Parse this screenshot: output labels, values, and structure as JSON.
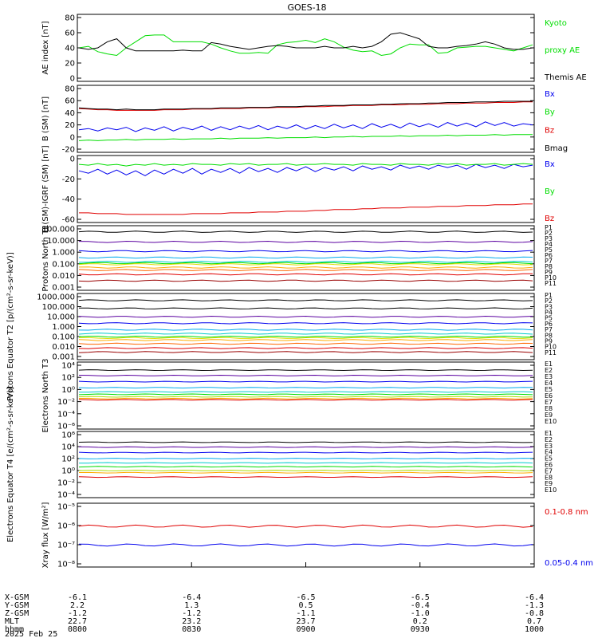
{
  "title": "GOES-18",
  "date": "2025 Feb 25",
  "colors": {
    "black": "#000000",
    "red": "#e00000",
    "green": "#00dd00",
    "blue": "#0000ee"
  },
  "ephemeris": {
    "rows": [
      "X-GSM",
      "Y-GSM",
      "Z-GSM",
      "MLT",
      "hhmm"
    ],
    "columns": [
      {
        "x": "-6.1",
        "y": "2.2",
        "z": "-1.2",
        "mlt": "22.7",
        "hhmm": "0800"
      },
      {
        "x": "-6.4",
        "y": "1.3",
        "z": "-1.2",
        "mlt": "23.2",
        "hhmm": "0830"
      },
      {
        "x": "-6.5",
        "y": "0.5",
        "z": "-1.1",
        "mlt": "23.7",
        "hhmm": "0900"
      },
      {
        "x": "-6.5",
        "y": "-0.4",
        "z": "-1.0",
        "mlt": "0.2",
        "hhmm": "0930"
      },
      {
        "x": "-6.4",
        "y": "-1.3",
        "z": "-0.8",
        "mlt": "0.7",
        "hhmm": "1000"
      }
    ]
  },
  "chart_data": [
    {
      "type": "line",
      "ylabel": "AE index [nT]",
      "yticks": [
        "80",
        "60",
        "40",
        "20",
        "0"
      ],
      "ylim": [
        0,
        80
      ],
      "scale": "linear",
      "legend": [
        {
          "text": "Kyoto",
          "color": "#00dd00"
        },
        {
          "text": "proxy AE",
          "color": "#00dd00"
        },
        {
          "text": "Themis AE",
          "color": "#000000"
        }
      ],
      "series": [
        {
          "color": "#00dd00",
          "values": [
            40,
            42,
            35,
            32,
            30,
            40,
            48,
            56,
            57,
            57,
            48,
            48,
            48,
            48,
            45,
            40,
            36,
            33,
            33,
            34,
            33,
            44,
            47,
            48,
            50,
            47,
            52,
            48,
            41,
            37,
            35,
            36,
            30,
            32,
            40,
            45,
            44,
            44,
            33,
            34,
            40,
            41,
            42,
            42,
            40,
            38,
            36,
            40,
            44
          ]
        },
        {
          "color": "#000000",
          "values": [
            40,
            38,
            40,
            48,
            52,
            40,
            36,
            36,
            36,
            36,
            36,
            37,
            36,
            36,
            47,
            45,
            42,
            40,
            38,
            40,
            42,
            43,
            42,
            40,
            40,
            40,
            42,
            40,
            40,
            42,
            40,
            42,
            48,
            58,
            60,
            56,
            52,
            42,
            40,
            40,
            42,
            43,
            45,
            48,
            45,
            40,
            38,
            38,
            40
          ]
        }
      ]
    },
    {
      "type": "line",
      "ylabel": "B (SM) [nT]",
      "yticks": [
        "80",
        "60",
        "40",
        "20",
        "0",
        "-20"
      ],
      "ylim": [
        -20,
        80
      ],
      "scale": "linear",
      "legend": [
        {
          "text": "Bx",
          "color": "#0000ee"
        },
        {
          "text": "By",
          "color": "#00dd00"
        },
        {
          "text": "Bz",
          "color": "#e00000"
        },
        {
          "text": "Bmag",
          "color": "#000000"
        }
      ],
      "series": [
        {
          "color": "#0000ee",
          "values": [
            12,
            14,
            10,
            15,
            12,
            16,
            9,
            15,
            11,
            17,
            10,
            16,
            12,
            18,
            11,
            17,
            12,
            18,
            13,
            19,
            12,
            18,
            14,
            20,
            13,
            19,
            14,
            21,
            15,
            20,
            14,
            22,
            16,
            21,
            15,
            23,
            17,
            22,
            16,
            24,
            18,
            23,
            17,
            25,
            19,
            24,
            18,
            22,
            20
          ]
        },
        {
          "color": "#00dd00",
          "values": [
            -6,
            -5,
            -6,
            -5,
            -5,
            -4,
            -5,
            -4,
            -4,
            -4,
            -3,
            -4,
            -3,
            -3,
            -3,
            -2,
            -3,
            -2,
            -2,
            -2,
            -1,
            -2,
            -1,
            -1,
            -1,
            0,
            -1,
            0,
            0,
            1,
            0,
            1,
            1,
            1,
            2,
            1,
            2,
            2,
            2,
            3,
            2,
            3,
            3,
            3,
            4,
            3,
            4,
            4,
            4
          ]
        },
        {
          "color": "#e00000",
          "values": [
            47,
            46,
            45,
            45,
            44,
            44,
            44,
            44,
            44,
            45,
            45,
            45,
            46,
            46,
            46,
            47,
            47,
            47,
            48,
            48,
            48,
            49,
            49,
            49,
            50,
            50,
            50,
            51,
            51,
            52,
            52,
            52,
            53,
            53,
            53,
            54,
            54,
            54,
            55,
            55,
            55,
            56,
            56,
            56,
            57,
            57,
            57,
            58,
            58
          ]
        },
        {
          "color": "#000000",
          "values": [
            48,
            47,
            46,
            46,
            45,
            46,
            45,
            45,
            45,
            46,
            46,
            46,
            47,
            47,
            47,
            48,
            48,
            48,
            49,
            49,
            49,
            50,
            50,
            50,
            51,
            51,
            52,
            52,
            52,
            53,
            53,
            53,
            54,
            54,
            55,
            55,
            55,
            56,
            56,
            57,
            57,
            57,
            58,
            58,
            58,
            59,
            59,
            59,
            59
          ]
        }
      ]
    },
    {
      "type": "line",
      "ylabel": "B (SM)-IGRF (SM) [nT]",
      "yticks": [
        "0",
        "-20",
        "-40",
        "-60"
      ],
      "ylim": [
        -65,
        10
      ],
      "scale": "linear",
      "legend": [
        {
          "text": "Bx",
          "color": "#0000ee"
        },
        {
          "text": "By",
          "color": "#00dd00"
        },
        {
          "text": "Bz",
          "color": "#e00000"
        }
      ],
      "series": [
        {
          "color": "#0000ee",
          "values": [
            -5,
            -8,
            -3,
            -9,
            -4,
            -10,
            -5,
            -11,
            -4,
            -9,
            -3,
            -8,
            -2,
            -9,
            -3,
            -7,
            -2,
            -8,
            -1,
            -6,
            -2,
            -7,
            -1,
            -5,
            0,
            -6,
            -1,
            -4,
            0,
            -5,
            1,
            -3,
            0,
            -4,
            2,
            -2,
            1,
            -3,
            2,
            -1,
            2,
            -3,
            3,
            -1,
            2,
            -2,
            3,
            0,
            2
          ]
        },
        {
          "color": "#00dd00",
          "values": [
            3,
            2,
            4,
            2,
            3,
            1,
            3,
            2,
            4,
            2,
            3,
            2,
            4,
            3,
            3,
            2,
            4,
            3,
            4,
            2,
            3,
            3,
            4,
            2,
            3,
            3,
            4,
            3,
            3,
            2,
            4,
            3,
            3,
            2,
            4,
            3,
            3,
            2,
            4,
            3,
            4,
            2,
            3,
            3,
            4,
            2,
            3,
            4,
            3
          ]
        },
        {
          "color": "#e00000",
          "values": [
            -57,
            -57,
            -58,
            -58,
            -58,
            -59,
            -59,
            -59,
            -59,
            -59,
            -59,
            -59,
            -58,
            -58,
            -58,
            -58,
            -57,
            -57,
            -57,
            -56,
            -56,
            -56,
            -55,
            -55,
            -55,
            -54,
            -54,
            -53,
            -53,
            -53,
            -52,
            -52,
            -51,
            -51,
            -51,
            -50,
            -50,
            -50,
            -49,
            -49,
            -49,
            -48,
            -48,
            -48,
            -47,
            -47,
            -47,
            -46,
            -46
          ]
        }
      ]
    },
    {
      "type": "line",
      "ylabel": "Protons North T1",
      "yticks": [
        "100.000",
        "10.000",
        "1.000",
        "0.100",
        "0.010",
        "0.001"
      ],
      "ylim": [
        0.0005,
        150
      ],
      "scale": "log",
      "legend": [
        {
          "text": "P1",
          "color": "#000000"
        },
        {
          "text": "P2",
          "color": "#000000"
        },
        {
          "text": "P3",
          "color": "#0000ee"
        },
        {
          "text": "P4",
          "color": "#0000ee"
        },
        {
          "text": "P5",
          "color": "#00aaee"
        },
        {
          "text": "P6",
          "color": "#00cccc"
        },
        {
          "text": "P7",
          "color": "#dddd00"
        },
        {
          "text": "P8",
          "color": "#ffaa00"
        },
        {
          "text": "P9",
          "color": "#ff8800"
        },
        {
          "text": "P10",
          "color": "#e00000"
        },
        {
          "text": "P11",
          "color": "#990000"
        }
      ],
      "series": [
        {
          "color": "#000000",
          "level": 80
        },
        {
          "color": "#5a00a0",
          "level": 9
        },
        {
          "color": "#0000ee",
          "level": 1.2
        },
        {
          "color": "#00aaee",
          "level": 0.3
        },
        {
          "color": "#00cccc",
          "level": 0.12
        },
        {
          "color": "#00dd00",
          "level": 0.09
        },
        {
          "color": "#dddd00",
          "level": 0.07
        },
        {
          "color": "#ffaa00",
          "level": 0.035
        },
        {
          "color": "#ff6600",
          "level": 0.02
        },
        {
          "color": "#e00000",
          "level": 0.008
        },
        {
          "color": "#990000",
          "level": 0.002
        }
      ]
    },
    {
      "type": "line",
      "ylabel": "Protons Equator T2 [p/(cm²-s-sr-keV)]",
      "yticks": [
        "1000.000",
        "100.000",
        "10.000",
        "1.000",
        "0.100",
        "0.010",
        "0.001"
      ],
      "ylim": [
        0.0005,
        1500
      ],
      "scale": "log",
      "legend": [
        {
          "text": "P1",
          "color": "#000000"
        },
        {
          "text": "P2",
          "color": "#000000"
        },
        {
          "text": "P3",
          "color": "#0000ee"
        },
        {
          "text": "P4",
          "color": "#0000ee"
        },
        {
          "text": "P5",
          "color": "#00aaee"
        },
        {
          "text": "P6",
          "color": "#00cccc"
        },
        {
          "text": "P7",
          "color": "#dddd00"
        },
        {
          "text": "P8",
          "color": "#ffaa00"
        },
        {
          "text": "P9",
          "color": "#ff8800"
        },
        {
          "text": "P10",
          "color": "#e00000"
        },
        {
          "text": "P11",
          "color": "#990000"
        }
      ],
      "series": [
        {
          "color": "#000000",
          "level": 600
        },
        {
          "color": "#000000",
          "level": 80
        },
        {
          "color": "#5a00a0",
          "level": 10
        },
        {
          "color": "#0000ee",
          "level": 2
        },
        {
          "color": "#00aaee",
          "level": 0.4
        },
        {
          "color": "#00cccc",
          "level": 0.15
        },
        {
          "color": "#00dd00",
          "level": 0.07
        },
        {
          "color": "#dddd00",
          "level": 0.05
        },
        {
          "color": "#ffaa00",
          "level": 0.03
        },
        {
          "color": "#ff6600",
          "level": 0.012
        },
        {
          "color": "#e00000",
          "level": 0.004
        },
        {
          "color": "#990000",
          "level": 0.0015
        }
      ]
    },
    {
      "type": "line",
      "ylabel": "Electrons North T3",
      "yticks": [
        "10⁴",
        "10²",
        "10⁰",
        "10⁻²",
        "10⁻⁴",
        "10⁻⁶"
      ],
      "ylim": [
        -6,
        4
      ],
      "scale": "log-exponent",
      "legend": [
        {
          "text": "E1",
          "color": "#000000"
        },
        {
          "text": "E2",
          "color": "#5a00a0"
        },
        {
          "text": "E3",
          "color": "#0000ee"
        },
        {
          "text": "E4",
          "color": "#00aaee"
        },
        {
          "text": "E5",
          "color": "#00cccc"
        },
        {
          "text": "E6",
          "color": "#00dd00"
        },
        {
          "text": "E7",
          "color": "#aadd00"
        },
        {
          "text": "E8",
          "color": "#ffaa00"
        },
        {
          "text": "E9",
          "color": "#e00000"
        },
        {
          "text": "E10",
          "color": "#990000"
        }
      ],
      "series": [
        {
          "color": "#000000",
          "level": 3.2
        },
        {
          "color": "#5a00a0",
          "level": 2.3
        },
        {
          "color": "#0000ee",
          "level": 1.3
        },
        {
          "color": "#00aaee",
          "level": 0.3
        },
        {
          "color": "#00cccc",
          "level": -0.4
        },
        {
          "color": "#00dd00",
          "level": -0.8
        },
        {
          "color": "#aadd00",
          "level": -1.2
        },
        {
          "color": "#ffaa00",
          "level": -1.5
        },
        {
          "color": "#e00000",
          "level": -1.7
        }
      ]
    },
    {
      "type": "line",
      "ylabel": "Electrons Equator T4 [e/(cm²-s-sr-keV)]",
      "yticks": [
        "10⁶",
        "10⁴",
        "10²",
        "10⁰",
        "10⁻²",
        "10⁻⁴"
      ],
      "ylim": [
        -5,
        6
      ],
      "scale": "log-exponent",
      "legend": [
        {
          "text": "E1",
          "color": "#000000"
        },
        {
          "text": "E2",
          "color": "#5a00a0"
        },
        {
          "text": "E3",
          "color": "#0000ee"
        },
        {
          "text": "E4",
          "color": "#00aaee"
        },
        {
          "text": "E5",
          "color": "#00cccc"
        },
        {
          "text": "E6",
          "color": "#00dd00"
        },
        {
          "text": "E7",
          "color": "#aadd00"
        },
        {
          "text": "E8",
          "color": "#ffaa00"
        },
        {
          "text": "E9",
          "color": "#e00000"
        },
        {
          "text": "E10",
          "color": "#990000"
        }
      ],
      "series": [
        {
          "color": "#000000",
          "level": 4.6
        },
        {
          "color": "#5a00a0",
          "level": 3.7
        },
        {
          "color": "#0000ee",
          "level": 2.7
        },
        {
          "color": "#00aaee",
          "level": 1.6
        },
        {
          "color": "#00cccc",
          "level": 0.8
        },
        {
          "color": "#00dd00",
          "level": 0.1
        },
        {
          "color": "#aadd00",
          "level": -0.6
        },
        {
          "color": "#ffaa00",
          "level": -1.0
        },
        {
          "color": "#e00000",
          "level": -1.8
        }
      ]
    },
    {
      "type": "line",
      "ylabel": "Xray flux [W/m²]",
      "yticks": [
        "10⁻⁵",
        "10⁻⁶",
        "10⁻⁷",
        "10⁻⁸"
      ],
      "ylim": [
        -8.2,
        -5
      ],
      "scale": "log-exponent",
      "legend": [
        {
          "text": "0.1-0.8 nm",
          "color": "#e00000"
        },
        {
          "text": "0.05-0.4 nm",
          "color": "#0000ee"
        }
      ],
      "series": [
        {
          "color": "#e00000",
          "level": -6.1
        },
        {
          "color": "#0000ee",
          "level": -7.15
        }
      ]
    }
  ]
}
